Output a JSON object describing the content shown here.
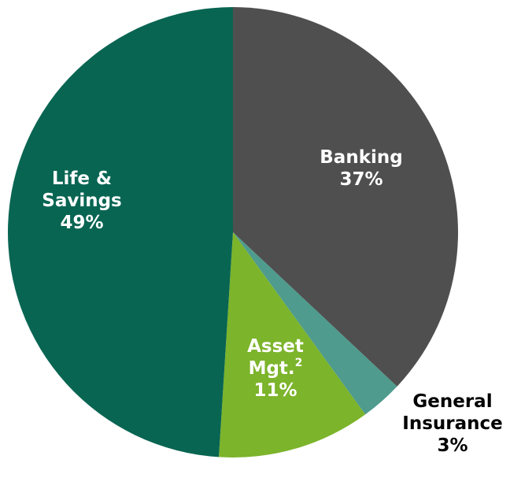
{
  "chart_data": {
    "type": "pie",
    "categories": [
      "Banking",
      "General Insurance",
      "Asset Mgt.",
      "Life & Savings"
    ],
    "values": [
      37,
      3,
      11,
      49
    ],
    "value_labels": [
      "37%",
      "3%",
      "11%",
      "49%"
    ],
    "label_lines": [
      [
        "Banking"
      ],
      [
        "General",
        "Insurance"
      ],
      [
        "Asset",
        "Mgt."
      ],
      [
        "Life &",
        "Savings"
      ]
    ],
    "footnote_markers": [
      "",
      "",
      "2",
      ""
    ],
    "colors": [
      "#4f4f4f",
      "#4f9b8d",
      "#7cb42b",
      "#086552"
    ],
    "label_colors": [
      "#ffffff",
      "#000000",
      "#ffffff",
      "#ffffff"
    ],
    "legend": "none"
  }
}
